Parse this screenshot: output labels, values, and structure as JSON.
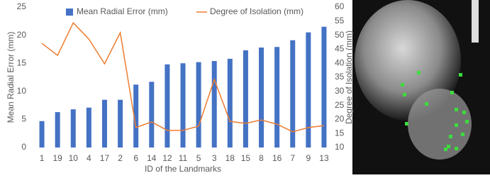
{
  "chart_data": {
    "type": "bar_line",
    "categories": [
      "1",
      "19",
      "10",
      "4",
      "17",
      "2",
      "6",
      "14",
      "12",
      "11",
      "5",
      "3",
      "18",
      "15",
      "8",
      "16",
      "7",
      "9",
      "13"
    ],
    "series": [
      {
        "name": "Mean Radial Error (mm)",
        "type": "bar",
        "color": "#4472c4",
        "values": [
          4.7,
          6.3,
          6.8,
          7.1,
          8.5,
          8.5,
          11.2,
          11.7,
          14.8,
          15.0,
          15.2,
          15.4,
          15.8,
          17.3,
          17.8,
          17.9,
          19.1,
          20.5,
          21.5
        ]
      },
      {
        "name": "Degree of Isolation (mm)",
        "type": "line",
        "axis": "y2",
        "color": "#ed7d31",
        "values": [
          47.1,
          42.8,
          54.4,
          48.6,
          39.8,
          50.9,
          17.1,
          19.1,
          16.1,
          16.1,
          17.6,
          34.2,
          19.3,
          18.6,
          19.8,
          18.3,
          15.6,
          17.1,
          17.8
        ]
      }
    ],
    "ylabel": "Mean Radial Error (mm)",
    "y2label": "Degree of Isolation (mm)",
    "xlabel": "ID of the Landmarks",
    "ylim": [
      0,
      25
    ],
    "yticks": [
      0,
      5,
      10,
      15,
      20,
      25
    ],
    "y2lim": [
      10,
      60
    ],
    "y2ticks": [
      10,
      15,
      20,
      25,
      30,
      35,
      40,
      45,
      50,
      55,
      60
    ]
  }
}
